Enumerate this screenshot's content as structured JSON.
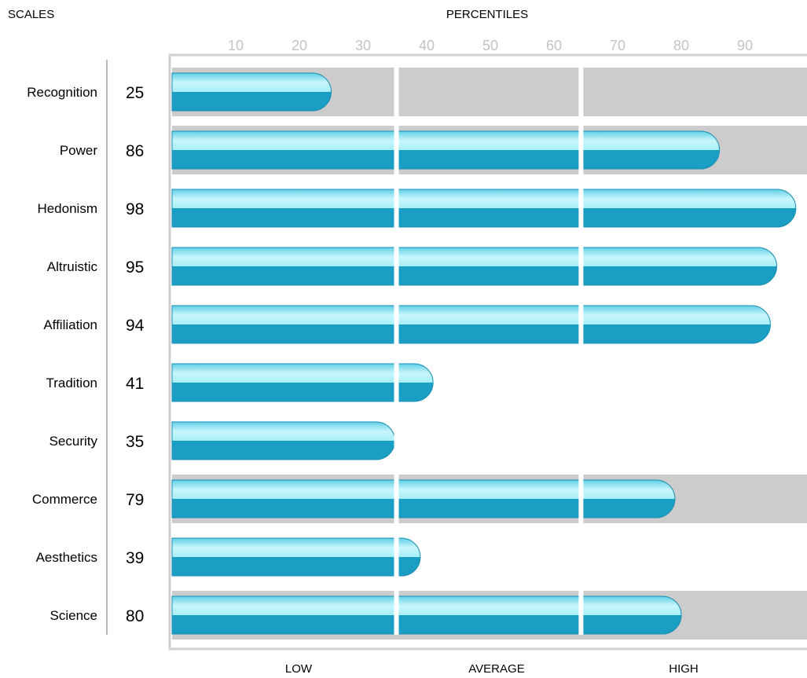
{
  "header": {
    "scales": "SCALES",
    "percentiles": "PERCENTILES"
  },
  "colors": {
    "bar_top": "#a8eef8",
    "bar_bottom": "#1a9ec4",
    "bar_stroke": "#1a8db2",
    "band_fill": "#cccccc",
    "frame": "#d0d0d0",
    "tick_text": "#c4c4c4"
  },
  "chart_data": {
    "type": "bar",
    "orientation": "horizontal",
    "title": "",
    "xlabel": "PERCENTILES",
    "ylabel": "SCALES",
    "xlim": [
      0,
      100
    ],
    "ticks": [
      10,
      20,
      30,
      40,
      50,
      60,
      70,
      80,
      90
    ],
    "band_dividers": [
      35,
      64
    ],
    "band_labels": [
      "LOW",
      "AVERAGE",
      "HIGH"
    ],
    "categories": [
      "Recognition",
      "Power",
      "Hedonism",
      "Altruistic",
      "Affiliation",
      "Tradition",
      "Security",
      "Commerce",
      "Aesthetics",
      "Science"
    ],
    "values": [
      25,
      86,
      98,
      95,
      94,
      41,
      35,
      79,
      39,
      80
    ],
    "shaded_background_rows": [
      "Recognition",
      "Power",
      "Commerce",
      "Science"
    ]
  }
}
